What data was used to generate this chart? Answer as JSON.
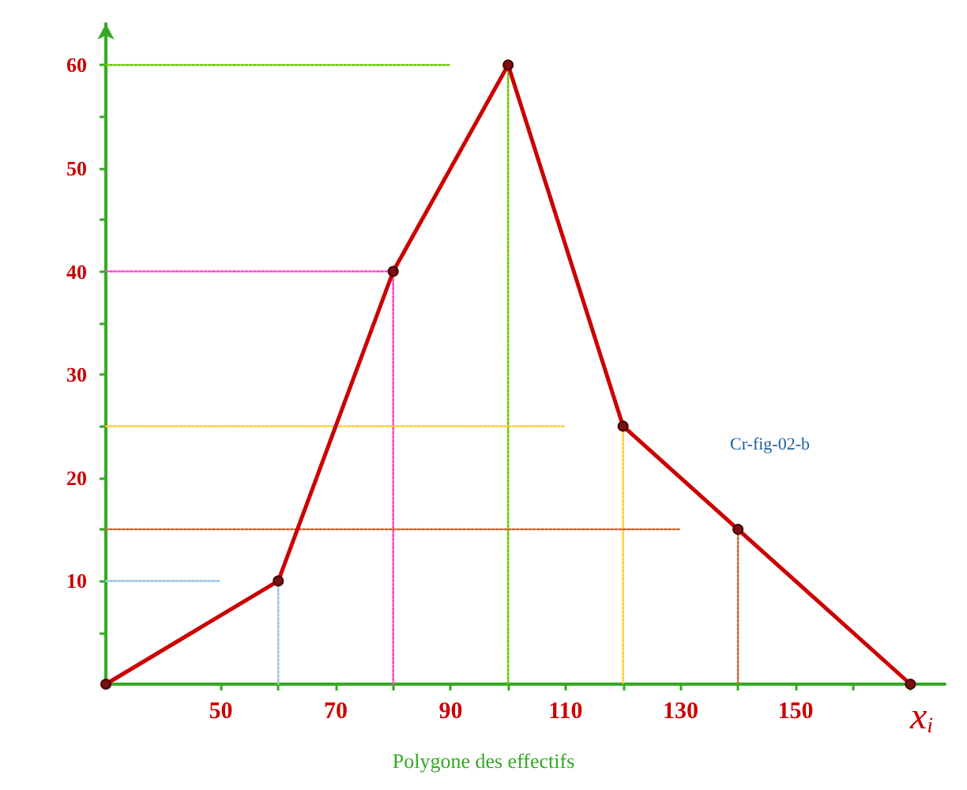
{
  "chart_data": {
    "type": "line",
    "xlabel": "x$_{i}$",
    "annotations": [
      "Polygone des effectifs",
      "Cr-fig-02-b"
    ],
    "xlim": [
      30,
      176
    ],
    "ylim": [
      0,
      64
    ],
    "xticks": [
      {
        "value": 50,
        "label": "50"
      },
      {
        "value": 60,
        "label": null
      },
      {
        "value": 70,
        "label": "70"
      },
      {
        "value": 80,
        "label": null
      },
      {
        "value": 90,
        "label": "90"
      },
      {
        "value": 100,
        "label": null
      },
      {
        "value": 110,
        "label": "110"
      },
      {
        "value": 120,
        "label": null
      },
      {
        "value": 130,
        "label": "130"
      },
      {
        "value": 140,
        "label": null
      },
      {
        "value": 150,
        "label": "150"
      },
      {
        "value": 160,
        "label": null
      },
      {
        "value": 170,
        "label": null
      }
    ],
    "yticks": [
      {
        "value": 5,
        "label": null
      },
      10,
      {
        "value": 15,
        "label": null
      },
      20,
      {
        "value": 25,
        "label": null
      },
      30,
      {
        "value": 35,
        "label": null
      },
      40,
      {
        "value": 45,
        "label": null
      },
      50,
      {
        "value": 55,
        "label": null
      },
      60
    ],
    "grid": false,
    "series": [
      {
        "x": [
          30,
          60,
          80,
          100,
          120,
          140,
          170
        ],
        "values": [
          0,
          10,
          40,
          60,
          25,
          15,
          0
        ],
        "color": "#cc0000",
        "marker": "circle",
        "line_style": "solid"
      },
      {
        "x": [
          30,
          50
        ],
        "values": [
          10,
          10
        ],
        "color": "#9fc5e8",
        "marker": "none",
        "line_style": "dotted"
      },
      {
        "x": [
          60,
          60
        ],
        "values": [
          10,
          0
        ],
        "color": "#9fc5e8",
        "marker": "none",
        "line_style": "dotted"
      },
      {
        "x": [
          30,
          80
        ],
        "values": [
          40,
          40
        ],
        "color": "#ff44cc",
        "marker": "none",
        "line_style": "dotted"
      },
      {
        "x": [
          80,
          80
        ],
        "values": [
          40,
          0
        ],
        "color": "#ff44cc",
        "marker": "none",
        "line_style": "dotted"
      },
      {
        "x": [
          30,
          90
        ],
        "values": [
          60,
          60
        ],
        "color": "#66cc00",
        "marker": "none",
        "line_style": "dotted"
      },
      {
        "x": [
          100,
          100
        ],
        "values": [
          60,
          0
        ],
        "color": "#66cc00",
        "marker": "none",
        "line_style": "dotted"
      },
      {
        "x": [
          30,
          110
        ],
        "values": [
          25,
          25
        ],
        "color": "#ffcc33",
        "marker": "none",
        "line_style": "dotted"
      },
      {
        "x": [
          120,
          120
        ],
        "values": [
          25,
          0
        ],
        "color": "#ffcc33",
        "marker": "none",
        "line_style": "dotted"
      },
      {
        "x": [
          30,
          130
        ],
        "values": [
          15,
          15
        ],
        "color": "#cc6633",
        "marker": "none",
        "line_style": "dotted"
      },
      {
        "x": [
          140,
          140
        ],
        "values": [
          15,
          0
        ],
        "color": "#cc6633",
        "marker": "none",
        "line_style": "dotted"
      }
    ]
  }
}
